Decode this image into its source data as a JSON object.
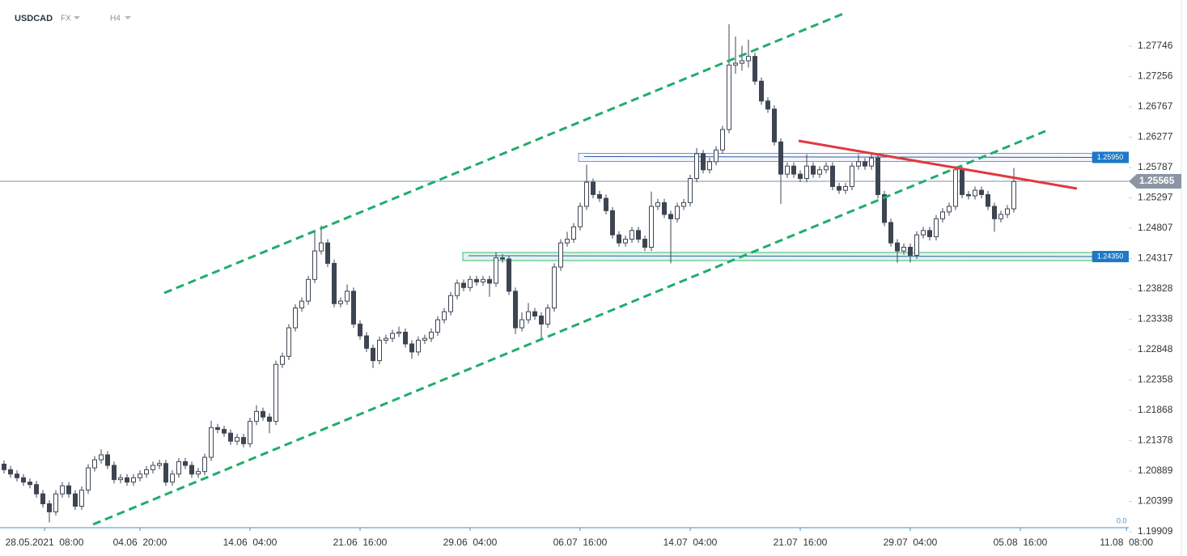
{
  "chart_data": {
    "type": "candlestick",
    "symbol": "USDCAD",
    "market": "FX",
    "timeframe": "H4",
    "xlim": [
      -0.625,
      173.75
    ],
    "xticks": [
      {
        "value": 6.25,
        "label": "28.05.2021  08:00"
      },
      {
        "value": 21,
        "label": "04.06  20:00"
      },
      {
        "value": 38,
        "label": "14.06  04:00"
      },
      {
        "value": 55,
        "label": "21.06  16:00"
      },
      {
        "value": 72,
        "label": "29.06  04:00"
      },
      {
        "value": 89,
        "label": "06.07  16:00"
      },
      {
        "value": 106,
        "label": "14.07  04:00"
      },
      {
        "value": 123,
        "label": "21.07  16:00"
      },
      {
        "value": 140,
        "label": "29.07  04:00"
      },
      {
        "value": 157,
        "label": "05.08  16:00"
      },
      {
        "value": 173.4,
        "label": "11.08  08:00"
      }
    ],
    "ylim": [
      1.1987,
      1.2849
    ],
    "yticks": [
      1.27746,
      1.27256,
      1.26767,
      1.26277,
      1.25787,
      1.25297,
      1.24807,
      1.24317,
      1.23828,
      1.23338,
      1.22848,
      1.22358,
      1.21868,
      1.21378,
      1.20889,
      1.20399,
      1.19909
    ],
    "current_price": 1.25565,
    "levels": [
      {
        "value": 1.2595,
        "label": "1.25950"
      },
      {
        "value": 1.2435,
        "label": "1.24350"
      }
    ],
    "indicator_axis_label": "0.0",
    "up_color": "#ffffff",
    "down_color": "#3d4552",
    "open": [
      1.21,
      1.2091,
      1.2084,
      1.2078,
      1.2071,
      1.2067,
      1.2052,
      1.2036,
      1.2023,
      1.2052,
      1.2065,
      1.2052,
      1.2032,
      1.2058,
      1.2094,
      1.2107,
      1.2115,
      1.2098,
      1.2075,
      1.2078,
      1.2071,
      1.2078,
      1.2084,
      1.2091,
      1.2098,
      1.2101,
      1.2071,
      1.2084,
      1.2104,
      1.2098,
      1.2084,
      1.2088,
      1.2111,
      1.2159,
      1.2156,
      1.215,
      1.2137,
      1.2143,
      1.2133,
      1.2169,
      1.2185,
      1.2176,
      1.2169,
      1.2261,
      1.2274,
      1.232,
      1.2352,
      1.2363,
      1.2398,
      1.2444,
      1.2457,
      1.2424,
      1.2359,
      1.2363,
      1.2379,
      1.2326,
      1.2307,
      1.2287,
      1.2267,
      1.23,
      1.2303,
      1.2311,
      1.2313,
      1.2294,
      1.2281,
      1.23,
      1.2303,
      1.2313,
      1.2333,
      1.2346,
      1.2372,
      1.2392,
      1.2385,
      1.2398,
      1.2394,
      1.2398,
      1.2392,
      1.2433,
      1.2431,
      1.2379,
      1.232,
      1.2333,
      1.2346,
      1.2339,
      1.2326,
      1.2352,
      1.2418,
      1.2457,
      1.2463,
      1.2483,
      1.2516,
      1.2555,
      1.2535,
      1.2529,
      1.2509,
      1.247,
      1.2457,
      1.2463,
      1.2477,
      1.2463,
      1.245,
      1.2516,
      1.2522,
      1.2503,
      1.2496,
      1.2516,
      1.2522,
      1.2561,
      1.2601,
      1.2575,
      1.2588,
      1.2607,
      1.264,
      1.2744,
      1.2747,
      1.2751,
      1.2758,
      1.2718,
      1.2686,
      1.2673,
      1.262,
      1.2568,
      1.2581,
      1.2568,
      1.2561,
      1.2581,
      1.2568,
      1.2575,
      1.2581,
      1.2548,
      1.2542,
      1.2548,
      1.2581,
      1.2588,
      1.2581,
      1.2594,
      1.2535,
      1.249,
      1.2457,
      1.2444,
      1.245,
      1.2437,
      1.247,
      1.2477,
      1.2467,
      1.2496,
      1.2507,
      1.2516,
      1.2575,
      1.2535,
      1.2533,
      1.2542,
      1.2535,
      1.2516,
      1.2496,
      1.2503,
      1.2512
    ],
    "high": [
      1.2106,
      1.2097,
      1.209,
      1.2084,
      1.2077,
      1.2073,
      1.2058,
      1.2042,
      1.2058,
      1.2071,
      1.2071,
      1.2058,
      1.2064,
      1.21,
      1.2113,
      1.2124,
      1.2121,
      1.2104,
      1.2084,
      1.2084,
      1.2084,
      1.209,
      1.2097,
      1.2104,
      1.2107,
      1.2107,
      1.209,
      1.211,
      1.211,
      1.2104,
      1.2094,
      1.2117,
      1.217,
      1.2165,
      1.2162,
      1.2156,
      1.2149,
      1.2149,
      1.2175,
      1.2195,
      1.2191,
      1.2182,
      1.2267,
      1.228,
      1.2326,
      1.2358,
      1.2369,
      1.2404,
      1.2475,
      1.2485,
      1.2463,
      1.243,
      1.2369,
      1.239,
      1.2385,
      1.2332,
      1.2313,
      1.2293,
      1.2306,
      1.2309,
      1.2317,
      1.2322,
      1.2319,
      1.23,
      1.2306,
      1.2309,
      1.2319,
      1.2339,
      1.2352,
      1.2378,
      1.2398,
      1.2398,
      1.2404,
      1.2404,
      1.2404,
      1.2404,
      1.2442,
      1.2439,
      1.2437,
      1.2385,
      1.2345,
      1.236,
      1.2352,
      1.2345,
      1.2358,
      1.2424,
      1.2463,
      1.2475,
      1.2489,
      1.2522,
      1.2583,
      1.2561,
      1.2541,
      1.2535,
      1.2515,
      1.2476,
      1.2469,
      1.2483,
      1.2483,
      1.2469,
      1.254,
      1.2528,
      1.2528,
      1.2509,
      1.2522,
      1.2528,
      1.2567,
      1.261,
      1.2607,
      1.2594,
      1.2613,
      1.2646,
      1.281,
      1.279,
      1.2775,
      1.2785,
      1.2764,
      1.2724,
      1.2692,
      1.2679,
      1.2626,
      1.2587,
      1.2587,
      1.2574,
      1.26,
      1.2587,
      1.2581,
      1.2587,
      1.2587,
      1.2554,
      1.2554,
      1.2587,
      1.26,
      1.2594,
      1.26,
      1.26,
      1.2541,
      1.2496,
      1.2463,
      1.2456,
      1.2456,
      1.2476,
      1.2483,
      1.2483,
      1.2502,
      1.2513,
      1.2522,
      1.2581,
      1.2581,
      1.2541,
      1.2548,
      1.2548,
      1.2541,
      1.2522,
      1.2509,
      1.2518,
      1.2578
    ],
    "low": [
      1.2085,
      1.2078,
      1.2072,
      1.2065,
      1.2061,
      1.2046,
      1.203,
      1.2006,
      1.2017,
      1.2046,
      1.2046,
      1.2026,
      1.2026,
      1.2052,
      1.2088,
      1.2101,
      1.2092,
      1.2069,
      1.2069,
      1.2065,
      1.2065,
      1.2072,
      1.2078,
      1.2085,
      1.2092,
      1.2065,
      1.2065,
      1.2078,
      1.2092,
      1.2078,
      1.2078,
      1.2082,
      1.2105,
      1.215,
      1.2144,
      1.2131,
      1.2131,
      1.2127,
      1.2127,
      1.2163,
      1.217,
      1.215,
      1.2163,
      1.2255,
      1.2268,
      1.2314,
      1.2346,
      1.2357,
      1.2392,
      1.2438,
      1.2418,
      1.2353,
      1.2353,
      1.2357,
      1.232,
      1.2301,
      1.2281,
      1.2255,
      1.2261,
      1.2294,
      1.2297,
      1.2305,
      1.2288,
      1.227,
      1.2275,
      1.2294,
      1.2297,
      1.2307,
      1.2327,
      1.234,
      1.2366,
      1.2379,
      1.2379,
      1.2388,
      1.2388,
      1.237,
      1.2386,
      1.2425,
      1.2373,
      1.231,
      1.2314,
      1.2327,
      1.2333,
      1.23,
      1.232,
      1.2346,
      1.2412,
      1.2451,
      1.2457,
      1.2477,
      1.251,
      1.2529,
      1.2523,
      1.2503,
      1.2464,
      1.2451,
      1.2451,
      1.2457,
      1.2457,
      1.2444,
      1.2444,
      1.251,
      1.2497,
      1.2424,
      1.249,
      1.251,
      1.2516,
      1.2555,
      1.2569,
      1.2569,
      1.2582,
      1.2601,
      1.2634,
      1.273,
      1.2735,
      1.274,
      1.2712,
      1.268,
      1.2667,
      1.2614,
      1.252,
      1.2562,
      1.2562,
      1.2555,
      1.2555,
      1.2562,
      1.2562,
      1.2569,
      1.2542,
      1.2536,
      1.2536,
      1.2542,
      1.2575,
      1.2575,
      1.2575,
      1.2529,
      1.2484,
      1.2451,
      1.2425,
      1.2438,
      1.2425,
      1.2431,
      1.2464,
      1.2461,
      1.2461,
      1.249,
      1.2501,
      1.251,
      1.2529,
      1.2527,
      1.2527,
      1.2529,
      1.251,
      1.2475,
      1.249,
      1.2497,
      1.2506
    ],
    "close": [
      1.2091,
      1.2084,
      1.2078,
      1.2071,
      1.2067,
      1.2052,
      1.2036,
      1.2023,
      1.2052,
      1.2065,
      1.2052,
      1.2032,
      1.2058,
      1.2094,
      1.2107,
      1.2115,
      1.2098,
      1.2075,
      1.2078,
      1.2071,
      1.2078,
      1.2084,
      1.2091,
      1.2098,
      1.2101,
      1.2071,
      1.2084,
      1.2104,
      1.2098,
      1.2084,
      1.2088,
      1.2111,
      1.2159,
      1.2156,
      1.215,
      1.2137,
      1.2143,
      1.2133,
      1.2169,
      1.2185,
      1.2176,
      1.2169,
      1.2261,
      1.2274,
      1.232,
      1.2352,
      1.2363,
      1.2398,
      1.2444,
      1.2457,
      1.2424,
      1.2359,
      1.2363,
      1.2379,
      1.2326,
      1.2307,
      1.2287,
      1.2267,
      1.23,
      1.2303,
      1.2311,
      1.2313,
      1.2294,
      1.2281,
      1.23,
      1.2303,
      1.2313,
      1.2333,
      1.2346,
      1.2372,
      1.2392,
      1.2385,
      1.2398,
      1.2394,
      1.2398,
      1.2392,
      1.2433,
      1.2431,
      1.2379,
      1.232,
      1.2333,
      1.2346,
      1.2339,
      1.2326,
      1.2352,
      1.2418,
      1.2457,
      1.2463,
      1.2483,
      1.2516,
      1.2555,
      1.2535,
      1.2529,
      1.2509,
      1.247,
      1.2457,
      1.2463,
      1.2477,
      1.2463,
      1.245,
      1.2516,
      1.2522,
      1.2503,
      1.2496,
      1.2516,
      1.2522,
      1.2561,
      1.2601,
      1.2575,
      1.2588,
      1.2607,
      1.264,
      1.2744,
      1.2747,
      1.2751,
      1.2758,
      1.2718,
      1.2686,
      1.2673,
      1.262,
      1.2568,
      1.2581,
      1.2568,
      1.2561,
      1.2581,
      1.2568,
      1.2575,
      1.2581,
      1.2548,
      1.2542,
      1.2548,
      1.2581,
      1.2588,
      1.2581,
      1.2594,
      1.2535,
      1.249,
      1.2457,
      1.2444,
      1.245,
      1.2437,
      1.247,
      1.2477,
      1.2467,
      1.2496,
      1.2507,
      1.2516,
      1.2575,
      1.2535,
      1.2533,
      1.2542,
      1.2535,
      1.2516,
      1.2496,
      1.2503,
      1.2512,
      1.2556
    ]
  }
}
